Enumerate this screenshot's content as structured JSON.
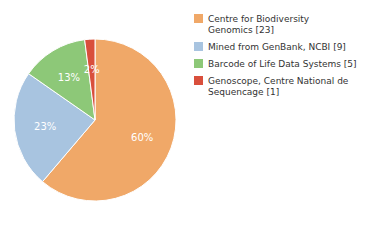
{
  "chart_data": {
    "type": "pie",
    "categories": [
      "Centre for Biodiversity\nGenomics [23]",
      "Mined from GenBank, NCBI [9]",
      "Barcode of Life Data Systems [5]",
      "Genoscope, Centre National de\nSequencage [1]"
    ],
    "values": [
      60,
      23,
      13,
      2
    ],
    "value_labels": [
      "60%",
      "23%",
      "13%",
      "2%"
    ],
    "data_labels": true,
    "colors": [
      "#f0a868",
      "#a8c4e0",
      "#8dc878",
      "#d94f3c"
    ],
    "legend": "right"
  }
}
